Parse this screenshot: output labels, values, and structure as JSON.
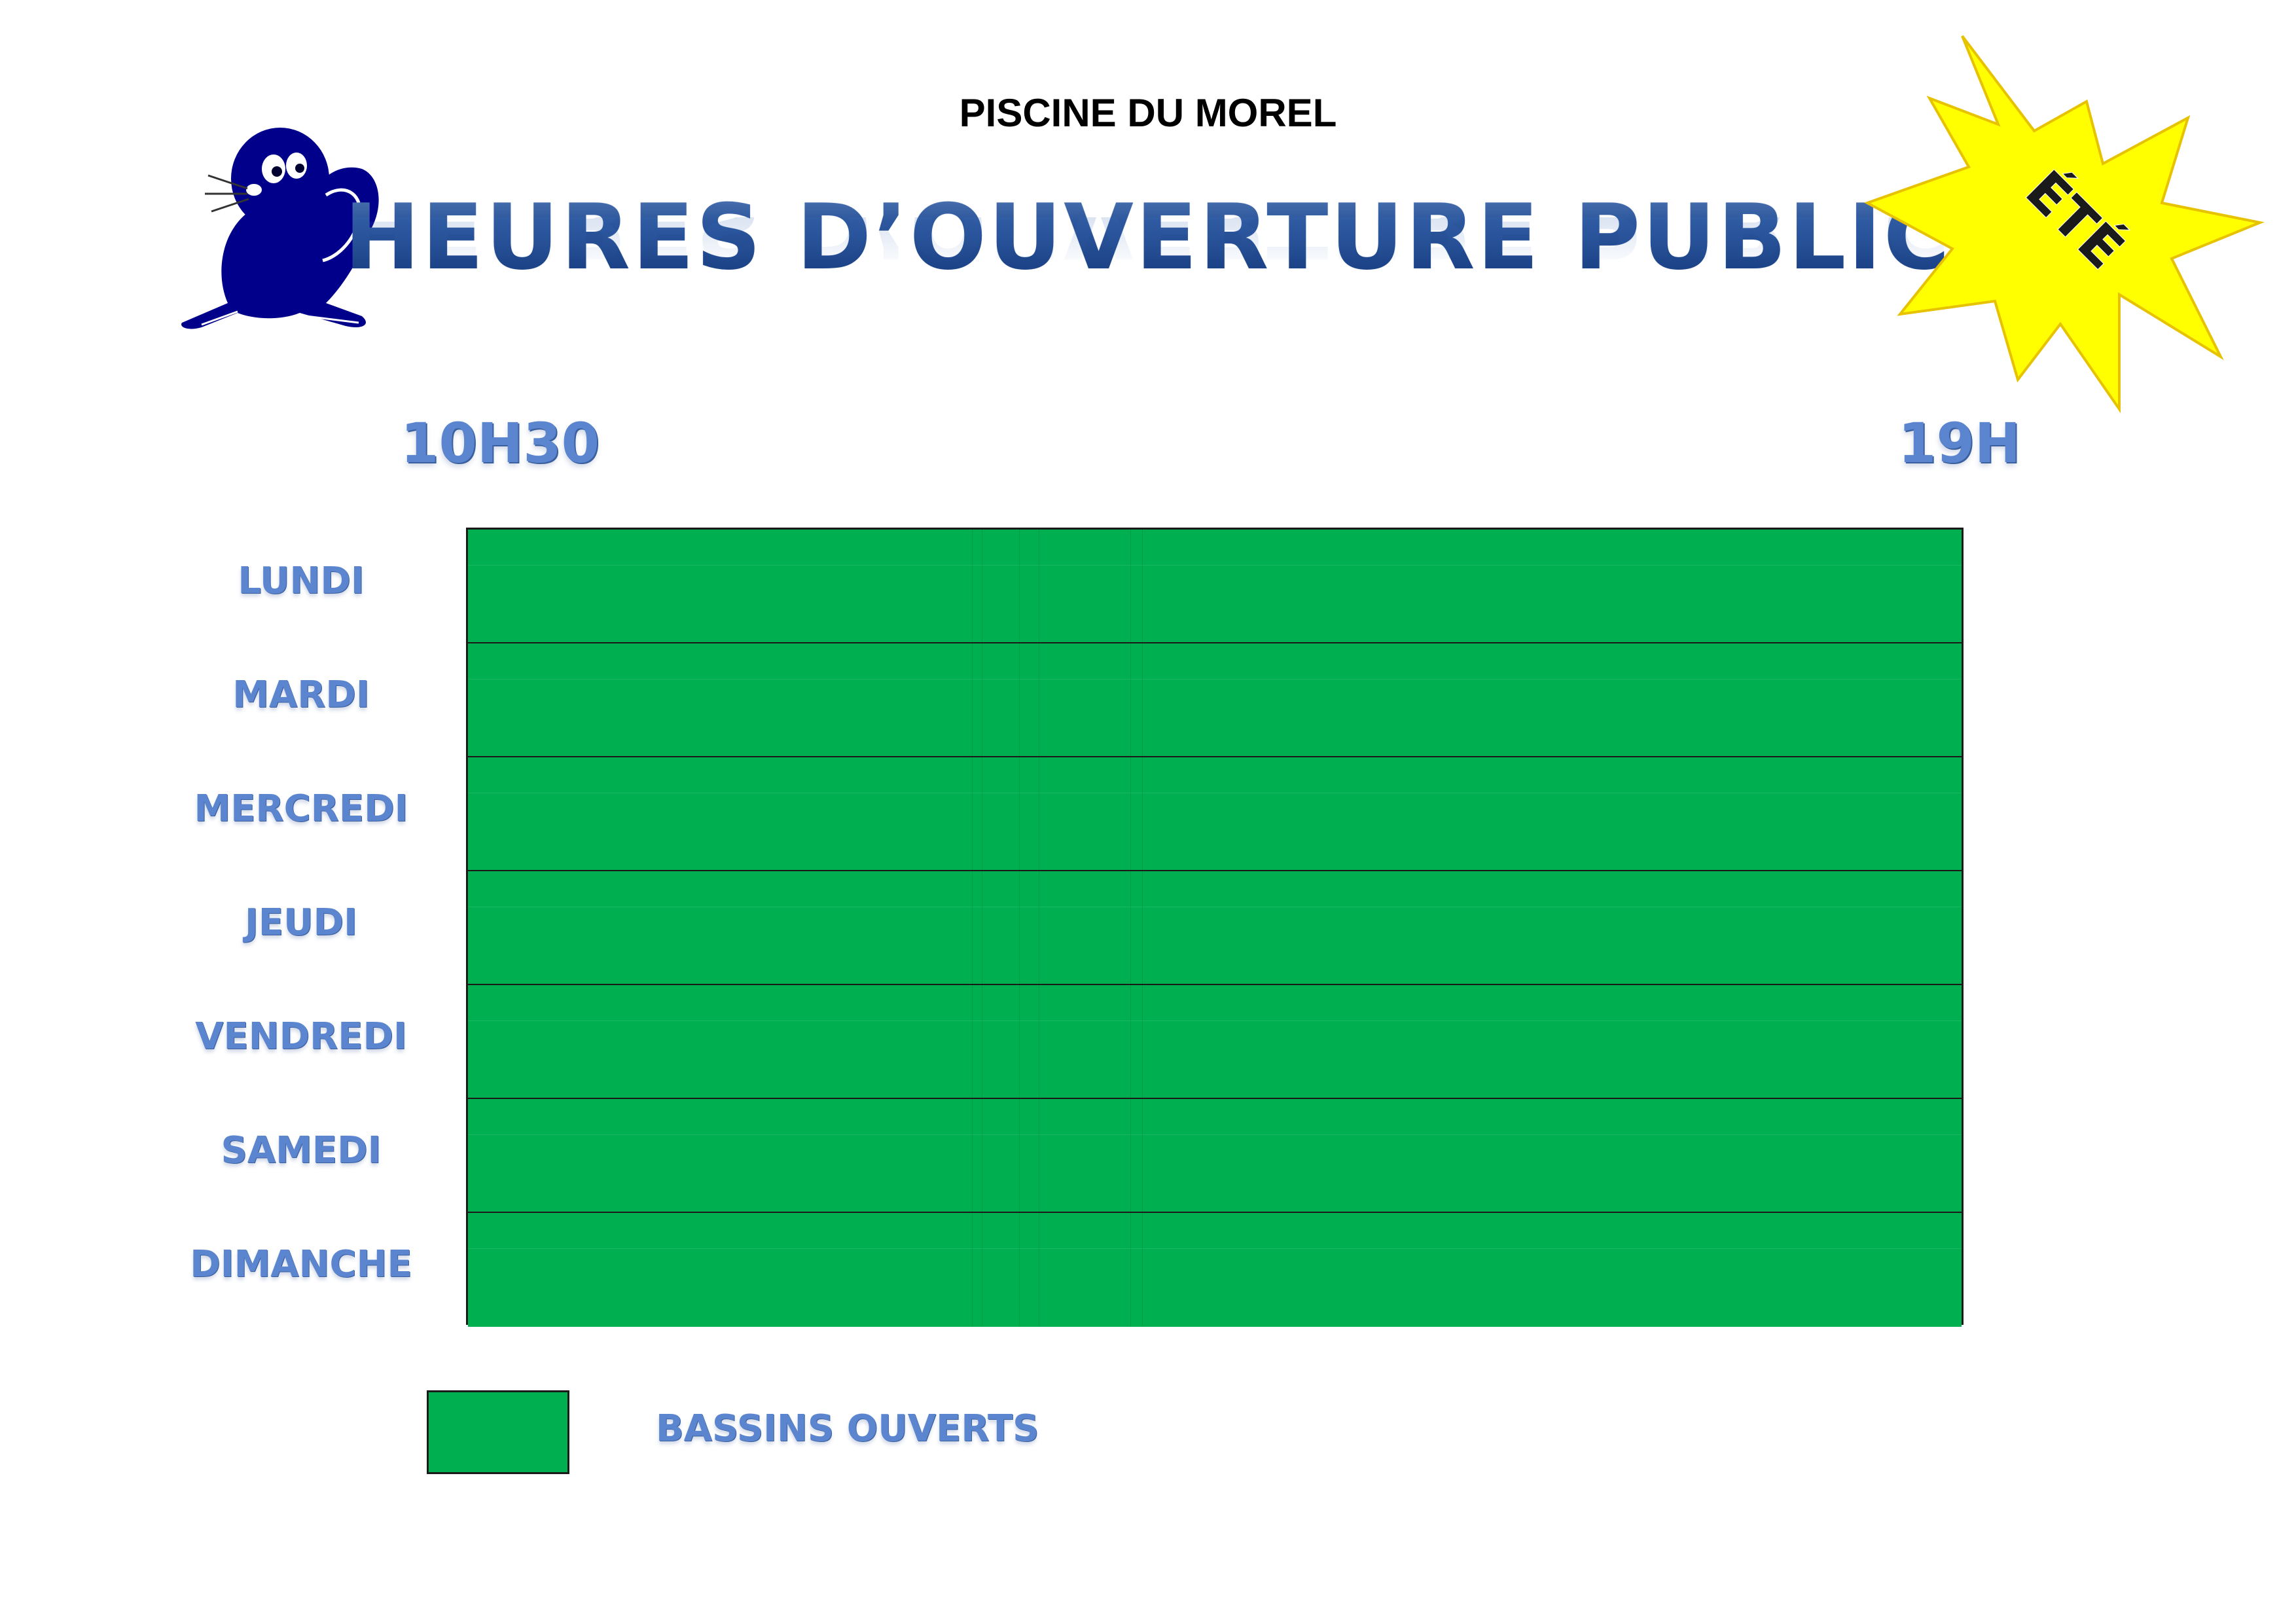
{
  "header": {
    "pool_name": "PISCINE DU MOREL",
    "title": "HEURES D’OUVERTURE PUBLIC"
  },
  "badge": {
    "label": "ÉTÉ",
    "color": "#ffff00"
  },
  "mascot": {
    "icon": "seal-mascot-icon",
    "color": "#00008b"
  },
  "timeline": {
    "start": "10H30",
    "end": "19H"
  },
  "schedule": {
    "days": [
      "LUNDI",
      "MARDI",
      "MERCREDI",
      "JEUDI",
      "VENDREDI",
      "SAMEDI",
      "DIMANCHE"
    ],
    "open_fraction": [
      1,
      1,
      1,
      1,
      1,
      1,
      1
    ],
    "open_color": "#00b050"
  },
  "legend": {
    "label": "BASSINS OUVERTS",
    "color": "#00b050"
  }
}
